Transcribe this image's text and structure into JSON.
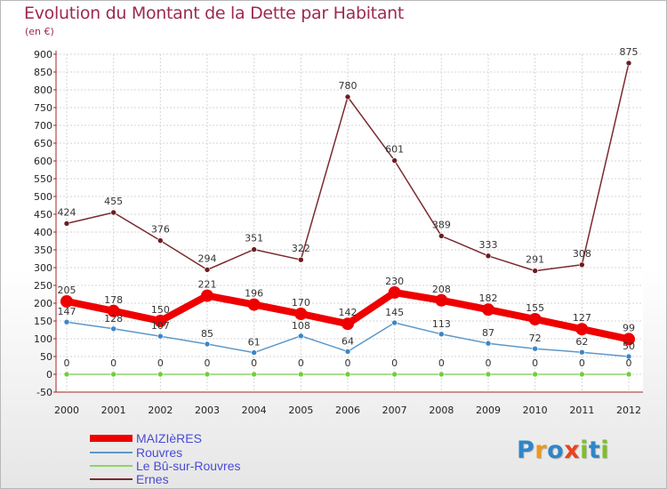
{
  "header": {
    "title": "Evolution du Montant de la Dette par Habitant",
    "subtitle": "(en €)"
  },
  "logo": {
    "text": "Proxiti",
    "letters": [
      {
        "ch": "P",
        "color": "#2f86c8"
      },
      {
        "ch": "r",
        "color": "#e89a1e"
      },
      {
        "ch": "o",
        "color": "#2f86c8"
      },
      {
        "ch": "x",
        "color": "#e8431e"
      },
      {
        "ch": "i",
        "color": "#7fbf2a"
      },
      {
        "ch": "t",
        "color": "#2f86c8"
      },
      {
        "ch": "i",
        "color": "#7fbf2a"
      }
    ]
  },
  "chart_data": {
    "type": "line",
    "title": "Evolution du Montant de la Dette par Habitant",
    "subtitle": "(en €)",
    "xlabel": "",
    "ylabel": "",
    "x": [
      "2000",
      "2001",
      "2002",
      "2003",
      "2004",
      "2005",
      "2006",
      "2007",
      "2008",
      "2009",
      "2010",
      "2011",
      "2012"
    ],
    "ylim": [
      -50,
      900
    ],
    "ytick_step": 50,
    "yticks": [
      "-50",
      "0",
      "50",
      "100",
      "150",
      "200",
      "250",
      "300",
      "350",
      "400",
      "450",
      "500",
      "550",
      "600",
      "650",
      "700",
      "750",
      "800",
      "850",
      "900"
    ],
    "grid": true,
    "legend_position": "bottom-left",
    "series": [
      {
        "name": "MAIZIèRES",
        "color": "#ee0000",
        "values": [
          205,
          178,
          150,
          221,
          196,
          170,
          142,
          230,
          208,
          182,
          155,
          127,
          99
        ],
        "labels": [
          "205",
          "178",
          "150",
          "221",
          "196",
          "170",
          "142",
          "230",
          "208",
          "182",
          "155",
          "127",
          "99"
        ]
      },
      {
        "name": "Rouvres",
        "color": "#5c98c9",
        "values": [
          147,
          128,
          107,
          85,
          61,
          108,
          64,
          145,
          113,
          87,
          72,
          62,
          50
        ],
        "labels": [
          "147",
          "128",
          "107",
          "85",
          "61",
          "108",
          "64",
          "145",
          "113",
          "87",
          "72",
          "62",
          "50"
        ]
      },
      {
        "name": "Le Bû-sur-Rouvres",
        "color": "#8ed36a",
        "values": [
          0,
          0,
          0,
          0,
          0,
          0,
          0,
          0,
          0,
          0,
          0,
          0,
          0
        ],
        "labels": [
          "0",
          "0",
          "0",
          "0",
          "0",
          "0",
          "0",
          "0",
          "0",
          "0",
          "0",
          "0",
          "0"
        ]
      },
      {
        "name": "Ernes",
        "color": "#7a2a2e",
        "values": [
          424,
          455,
          376,
          294,
          351,
          322,
          780,
          601,
          389,
          333,
          291,
          308,
          875
        ],
        "labels": [
          "424",
          "455",
          "376",
          "294",
          "351",
          "322",
          "780",
          "601",
          "389",
          "333",
          "291",
          "308",
          "875"
        ]
      }
    ]
  }
}
